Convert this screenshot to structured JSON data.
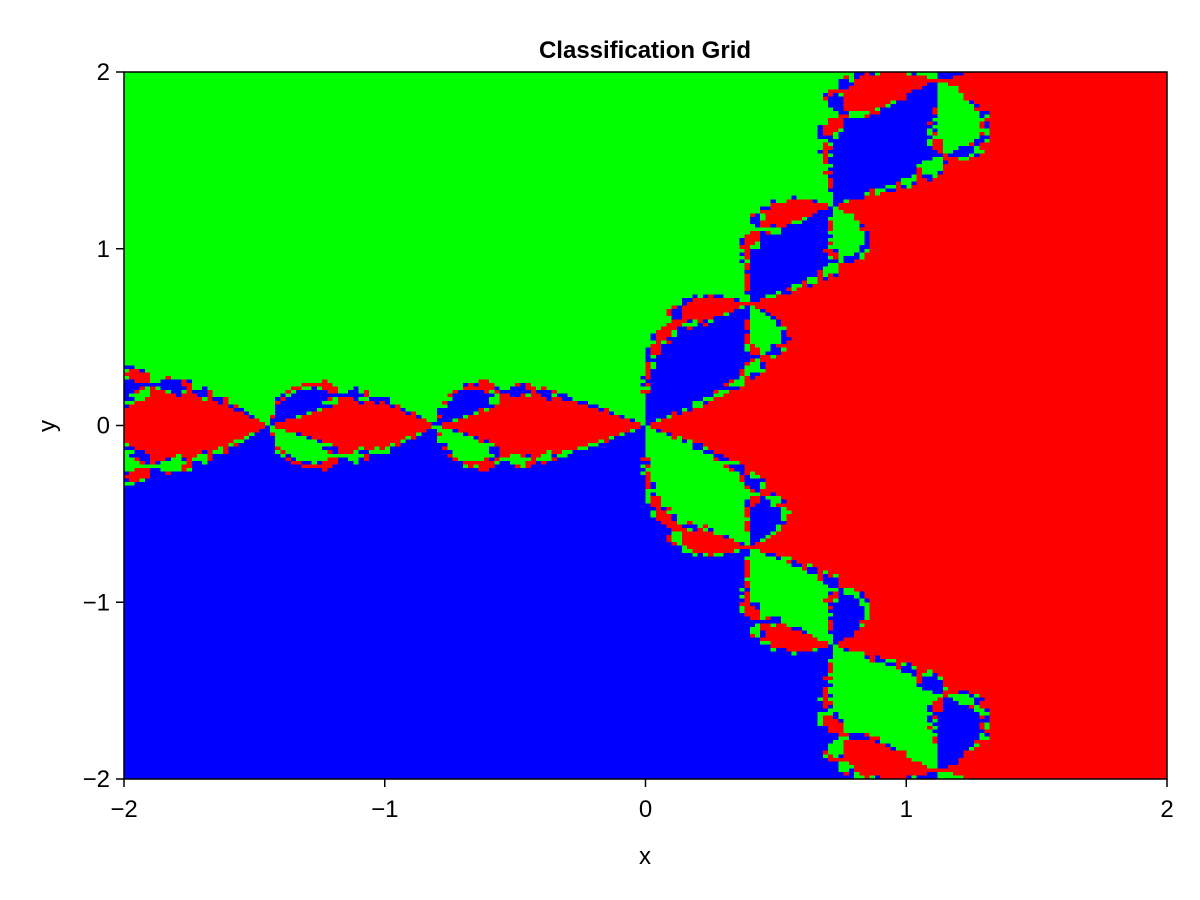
{
  "chart_data": {
    "type": "heatmap",
    "title": "Classification Grid",
    "xlabel": "x",
    "ylabel": "y",
    "xlim": [
      -2,
      2
    ],
    "ylim": [
      -2,
      2
    ],
    "x_ticks": [
      "−2",
      "−1",
      "0",
      "1",
      "2"
    ],
    "y_ticks": [
      "−2",
      "−1",
      "0",
      "1",
      "2"
    ],
    "grid": false,
    "colormap": {
      "categories": [
        "red",
        "green",
        "blue"
      ],
      "colors": [
        "#ff0000",
        "#00ff00",
        "#0000ff"
      ]
    },
    "resolution": [
      200,
      200
    ],
    "description_of_values": "Each cell classified by Newton's method convergence for z^3 - 1 = 0; root at angle 0 -> red, 2pi/3 -> green, 4pi/3 -> blue"
  }
}
